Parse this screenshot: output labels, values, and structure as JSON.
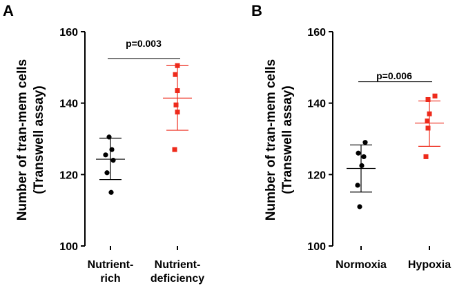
{
  "chart_data": [
    {
      "type": "scatter",
      "panel_label": "A",
      "ylabel_lines": [
        "Number of tran-mem cells",
        "(Transwell assay)"
      ],
      "ylim": [
        100,
        160
      ],
      "yticks": [
        100,
        120,
        140,
        160
      ],
      "categories": [
        {
          "label_lines": [
            "Nutrient-",
            "rich"
          ],
          "color": "#000000",
          "marker": "circle",
          "points": [
            130.5,
            127,
            125.5,
            124,
            120.5,
            115
          ],
          "mean": 124.3,
          "sd_upper": 130.2,
          "sd_lower": 118.6
        },
        {
          "label_lines": [
            "Nutrient-",
            "deficiency"
          ],
          "color": "#ee2a1b",
          "marker": "square",
          "points": [
            150.5,
            148,
            143.5,
            139.5,
            137.5,
            127
          ],
          "mean": 141.4,
          "sd_upper": 150.5,
          "sd_lower": 132.4
        }
      ],
      "annotation": {
        "text": "p=0.003",
        "bracket_y": 152.5
      }
    },
    {
      "type": "scatter",
      "panel_label": "B",
      "ylabel_lines": [
        "Number of tran-mem cells",
        "(Transwell assay)"
      ],
      "ylim": [
        100,
        160
      ],
      "yticks": [
        100,
        120,
        140,
        160
      ],
      "categories": [
        {
          "label_lines": [
            "Normoxia"
          ],
          "color": "#000000",
          "marker": "circle",
          "points": [
            129,
            126,
            125,
            122.5,
            117,
            111
          ],
          "mean": 121.7,
          "sd_upper": 128.3,
          "sd_lower": 115.1
        },
        {
          "label_lines": [
            "Hypoxia"
          ],
          "color": "#ee2a1b",
          "marker": "square",
          "points": [
            142,
            141,
            137,
            135,
            133,
            125
          ],
          "mean": 134.4,
          "sd_upper": 140.6,
          "sd_lower": 127.9
        },
        {
          "label_lines": [],
          "color": "#ee2a1b",
          "marker": "none",
          "points": []
        }
      ],
      "annotation": {
        "text": "p=0.006",
        "bracket_y": 146
      }
    }
  ]
}
